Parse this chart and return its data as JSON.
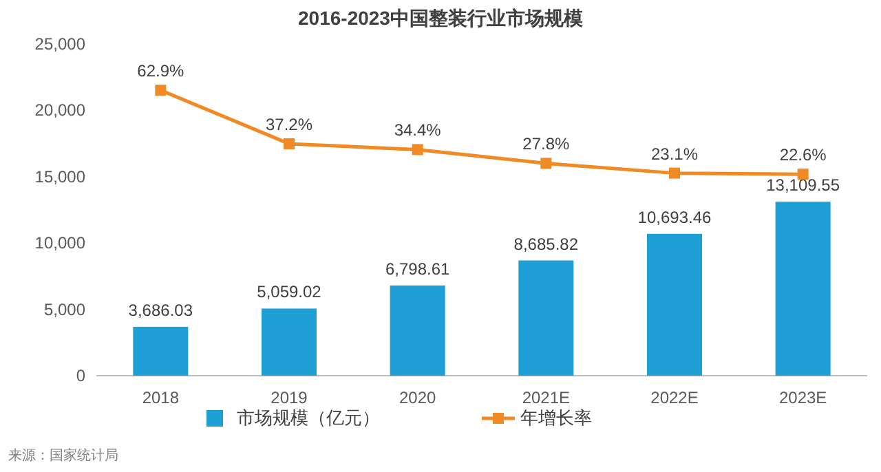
{
  "chart_data": {
    "type": "bar",
    "title": "2016-2023中国整装行业市场规模",
    "categories": [
      "2018",
      "2019",
      "2020",
      "2021E",
      "2022E",
      "2023E"
    ],
    "series": [
      {
        "name": "市场规模（亿元）",
        "color": "#1e9fd6",
        "values": [
          3686.03,
          5059.02,
          6798.61,
          8685.82,
          10693.46,
          13109.55
        ],
        "value_labels": [
          "3,686.03",
          "5,059.02",
          "6,798.61",
          "8,685.82",
          "10,693.46",
          "13,109.55"
        ]
      },
      {
        "name": "年增长率",
        "type": "line",
        "axis": "y2",
        "color": "#f08a24",
        "marker": "square",
        "values": [
          62.9,
          37.2,
          34.4,
          27.8,
          23.1,
          22.6
        ],
        "value_labels": [
          "62.9%",
          "37.2%",
          "34.4%",
          "27.8%",
          "23.1%",
          "22.6%"
        ]
      }
    ],
    "ylim": [
      0,
      25000
    ],
    "yticks": [
      0,
      {
        "value": 5000,
        "label": "5,000"
      },
      {
        "value": 10000,
        "label": "10,000"
      },
      {
        "value": 15000,
        "label": "15,000"
      },
      {
        "value": 20000,
        "label": "20,000"
      },
      {
        "value": 25000,
        "label": "25,000"
      }
    ],
    "tick_labels": "xy",
    "grid": false,
    "legend": "bottom",
    "annotations": [
      "来源：国家统计局"
    ]
  }
}
